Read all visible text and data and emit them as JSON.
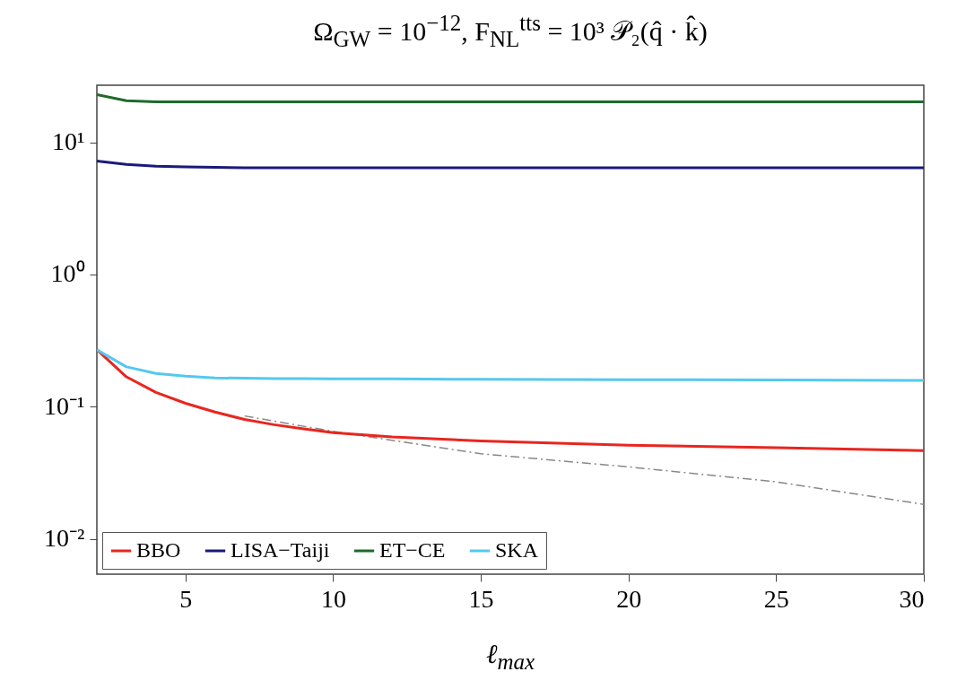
{
  "chart_data": {
    "type": "line",
    "title": "Ω$_{GW}$ = 10$^{−12}$, F$_{NL}$$^{tts}$ = 10³ 𝒫₂(q̂ · k̂)",
    "xlabel": "ℓ$_{max}$",
    "x": [
      2,
      3,
      4,
      5,
      6,
      7,
      8,
      9,
      10,
      12,
      15,
      20,
      25,
      30
    ],
    "series": [
      {
        "name": "BBO",
        "color": "#e8261f",
        "values": [
          0.27,
          0.168,
          0.128,
          0.106,
          0.091,
          0.08,
          0.073,
          0.068,
          0.0635,
          0.059,
          0.055,
          0.051,
          0.049,
          0.0465
        ]
      },
      {
        "name": "LISA−Taiji",
        "color": "#1a1a7a",
        "values": [
          7.2,
          6.8,
          6.6,
          6.5,
          6.45,
          6.4,
          6.4,
          6.4,
          6.4,
          6.4,
          6.4,
          6.4,
          6.4,
          6.4
        ]
      },
      {
        "name": "ET−CE",
        "color": "#1e6b2a",
        "values": [
          22.9,
          20.6,
          20.2,
          20.2,
          20.2,
          20.2,
          20.2,
          20.2,
          20.2,
          20.2,
          20.2,
          20.2,
          20.2,
          20.2
        ]
      },
      {
        "name": "SKA",
        "color": "#55c8ee",
        "values": [
          0.27,
          0.2,
          0.178,
          0.17,
          0.165,
          0.164,
          0.163,
          0.163,
          0.162,
          0.162,
          0.161,
          0.16,
          0.159,
          0.158
        ]
      },
      {
        "color": "#888888",
        "line_style": "dashed",
        "x": [
          7,
          10,
          15,
          20,
          25,
          30
        ],
        "values": [
          0.085,
          0.065,
          0.044,
          0.035,
          0.027,
          0.0182
        ]
      }
    ],
    "log": "y",
    "xlim": [
      2,
      30
    ],
    "xticks": [
      5,
      10,
      15,
      20,
      25,
      30
    ],
    "ylim": [
      0.0054,
      27
    ],
    "yticks": [
      {
        "value": 10,
        "label": "10¹"
      },
      {
        "value": 1,
        "label": "10⁰"
      },
      {
        "value": 0.1,
        "label": "10⁻¹"
      },
      {
        "value": 0.01,
        "label": "10⁻²"
      }
    ],
    "legend": "bottom left",
    "grid": false
  }
}
